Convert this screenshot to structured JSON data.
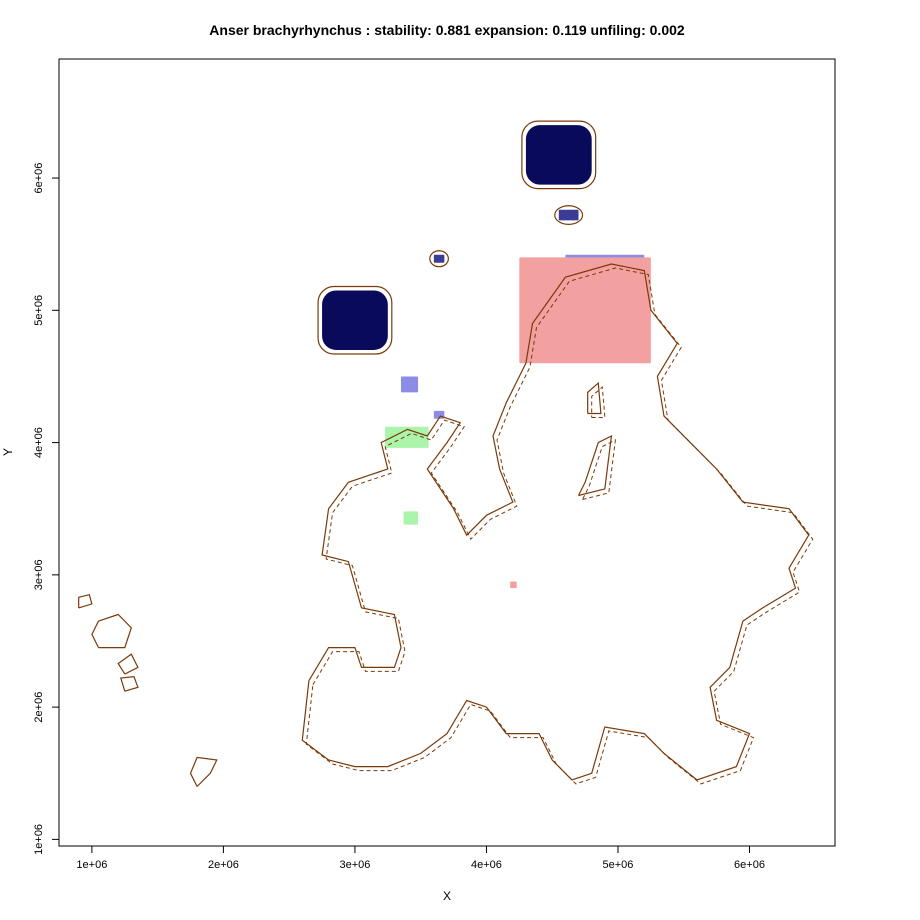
{
  "chart_data": {
    "type": "heatmap",
    "title": "Anser brachyrhynchus : stability: 0.881 expansion: 0.119 unfiling: 0.002",
    "xlabel": "X",
    "ylabel": "Y",
    "xlim": [
      750000,
      6650000
    ],
    "ylim": [
      950000,
      6900000
    ],
    "x_ticks": [
      {
        "value": 1000000,
        "label": "1e+06"
      },
      {
        "value": 2000000,
        "label": "2e+06"
      },
      {
        "value": 3000000,
        "label": "3e+06"
      },
      {
        "value": 4000000,
        "label": "4e+06"
      },
      {
        "value": 5000000,
        "label": "5e+06"
      },
      {
        "value": 6000000,
        "label": "6e+06"
      }
    ],
    "y_ticks": [
      {
        "value": 1000000,
        "label": "1e+06"
      },
      {
        "value": 2000000,
        "label": "2e+06"
      },
      {
        "value": 3000000,
        "label": "3e+06"
      },
      {
        "value": 4000000,
        "label": "4e+06"
      },
      {
        "value": 5000000,
        "label": "5e+06"
      },
      {
        "value": 6000000,
        "label": "6e+06"
      }
    ],
    "grid": false,
    "legend": "none",
    "colors": {
      "stability_dark": "#0a0a5a",
      "stability_mid": "#3c3c96",
      "stability_light": "#8c8ce6",
      "expansion": "#f2a0a0",
      "unfilling": "#aaf5aa",
      "outline": "#7a3a0a",
      "frame": "#000000"
    },
    "regions": [
      {
        "class": "stability",
        "shade": "dark",
        "x": [
          4300000,
          4800000
        ],
        "y": [
          5950000,
          6400000
        ]
      },
      {
        "class": "stability",
        "shade": "dark",
        "x": [
          2750000,
          3250000
        ],
        "y": [
          4700000,
          5150000
        ]
      },
      {
        "class": "stability",
        "shade": "mid",
        "x": [
          4550000,
          4700000
        ],
        "y": [
          5680000,
          5760000
        ]
      },
      {
        "class": "stability",
        "shade": "mid",
        "x": [
          3600000,
          3680000
        ],
        "y": [
          5360000,
          5420000
        ]
      },
      {
        "class": "stability",
        "shade": "light",
        "x": [
          3350000,
          3480000
        ],
        "y": [
          4380000,
          4500000
        ]
      },
      {
        "class": "stability",
        "shade": "light",
        "x": [
          4600000,
          5200000
        ],
        "y": [
          5230000,
          5420000
        ]
      },
      {
        "class": "stability",
        "shade": "light",
        "x": [
          3600000,
          3680000
        ],
        "y": [
          4180000,
          4240000
        ]
      },
      {
        "class": "stability",
        "shade": "light",
        "x": [
          3250000,
          3400000
        ],
        "y": [
          4030000,
          4080000
        ]
      },
      {
        "class": "expansion",
        "x": [
          4250000,
          5250000
        ],
        "y": [
          4600000,
          5400000
        ]
      },
      {
        "class": "expansion",
        "x": [
          4180000,
          4230000
        ],
        "y": [
          2900000,
          2950000
        ]
      },
      {
        "class": "unfilling",
        "x": [
          3370000,
          3480000
        ],
        "y": [
          3380000,
          3480000
        ]
      },
      {
        "class": "unfilling",
        "x": [
          3230000,
          3560000
        ],
        "y": [
          3960000,
          4120000
        ]
      }
    ]
  }
}
